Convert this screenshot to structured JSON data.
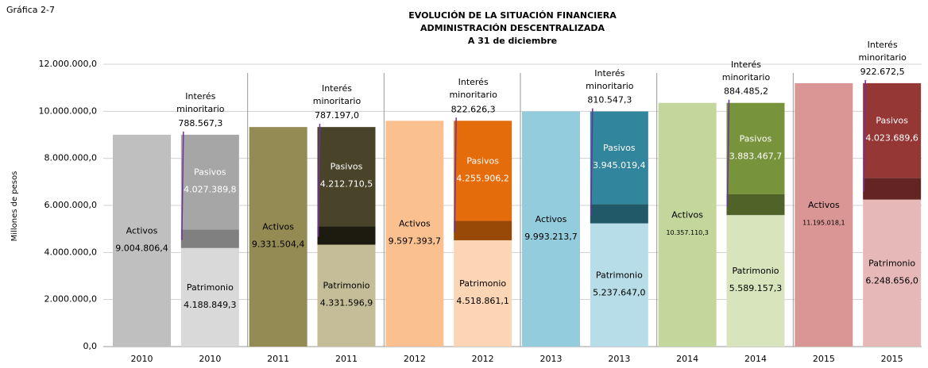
{
  "chart_data": {
    "type": "stacked_bar",
    "figure_label": "Gráfica 2-7",
    "title": [
      "EVOLUCIÓN DE LA SITUACIÓN FINANCIERA",
      "ADMINISTRACIÓN DESCENTRALIZADA",
      "A 31 de diciembre"
    ],
    "y_label": "Millones de pesos",
    "categories": [
      "2010",
      "2010",
      "2011",
      "2011",
      "2012",
      "2012",
      "2013",
      "2013",
      "2014",
      "2014",
      "2015",
      "2015"
    ],
    "series": [
      {
        "name": "Activos",
        "values": [
          9004806.4,
          null,
          9331504.4,
          null,
          9597393.7,
          null,
          9993213.7,
          null,
          10357110.3,
          null,
          11195018.1,
          null
        ],
        "value_labels": [
          "9.004.806,4",
          null,
          "9.331.504,4",
          null,
          "9.597.393,7",
          null,
          "9.993.213,7",
          null,
          "10.357.110,3",
          null,
          "11.195.018,1",
          null
        ],
        "colors": [
          "#bfbfbf",
          null,
          "#948a54",
          null,
          "#fac090",
          null,
          "#93cddd",
          null,
          "#c3d69b",
          null,
          "#d99694",
          null
        ]
      },
      {
        "name": "Patrimonio",
        "values": [
          null,
          4188849.3,
          null,
          4331596.9,
          null,
          4518861.1,
          null,
          5237647.0,
          null,
          5589157.3,
          null,
          6248656.0
        ],
        "value_labels": [
          null,
          "4.188.849,3",
          null,
          "4.331.596,9",
          null,
          "4.518.861,1",
          null,
          "5.237.647,0",
          null,
          "5.589.157,3",
          null,
          "6.248.656,0"
        ],
        "colors": [
          null,
          "#d9d9d9",
          null,
          "#c4bd97",
          null,
          "#fcd5b4",
          null,
          "#b7dde8",
          null,
          "#d7e4bc",
          null,
          "#e6b9b8"
        ]
      },
      {
        "name": "Interés minoritario",
        "values": [
          null,
          788567.3,
          null,
          787197.0,
          null,
          822626.3,
          null,
          810547.3,
          null,
          884485.2,
          null,
          922672.5
        ],
        "value_labels": [
          null,
          "788.567,3",
          null,
          "787.197,0",
          null,
          "822.626,3",
          null,
          "810.547,3",
          null,
          "884.485,2",
          null,
          "922.672,5"
        ],
        "colors": [
          null,
          "#808080",
          null,
          "#1d1b10",
          null,
          "#984807",
          null,
          "#215968",
          null,
          "#4f6228",
          null,
          "#632423"
        ]
      },
      {
        "name": "Pasivos",
        "values": [
          null,
          4027389.8,
          null,
          4212710.5,
          null,
          4255906.2,
          null,
          3945019.4,
          null,
          3883467.7,
          null,
          4023689.6
        ],
        "value_labels": [
          null,
          "4.027.389,8",
          null,
          "4.212.710,5",
          null,
          "4.255.906,2",
          null,
          "3.945.019,4",
          null,
          "3.883.467,7",
          null,
          "4.023.689,6"
        ],
        "colors": [
          null,
          "#a6a6a6",
          null,
          "#494429",
          null,
          "#e46c0a",
          null,
          "#31859c",
          null,
          "#77933c",
          null,
          "#953735"
        ]
      }
    ],
    "ylim": [
      0,
      12000000
    ],
    "yticks": [
      {
        "value": 0,
        "label": "0,0"
      },
      {
        "value": 2000000,
        "label": "2.000.000,0"
      },
      {
        "value": 4000000,
        "label": "4.000.000,0"
      },
      {
        "value": 6000000,
        "label": "6.000.000,0"
      },
      {
        "value": 8000000,
        "label": "8.000.000,0"
      },
      {
        "value": 10000000,
        "label": "10.000.000,0"
      },
      {
        "value": 12000000,
        "label": "12.000.000,0"
      }
    ],
    "grid": true
  }
}
